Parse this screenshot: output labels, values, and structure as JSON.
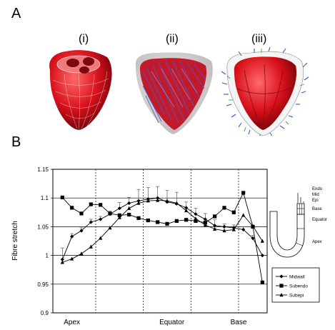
{
  "panel_a": {
    "letter": "A",
    "labels": [
      "(i)",
      "(ii)",
      "(iii)"
    ],
    "model_colors": {
      "myocardium": "#d8111b",
      "fibres": "#3340a8",
      "mesh": "#ffffff",
      "shell": "#c9c9c9",
      "vectors": "#2e5bd0",
      "vectors_alt": "#3aa05a"
    }
  },
  "panel_b": {
    "letter": "B",
    "schematic": {
      "labels": [
        "Endo",
        "Mid",
        "Epi",
        "Base",
        "Equator",
        "Apex"
      ]
    }
  },
  "chart_data": {
    "type": "line",
    "title": "",
    "ylabel": "Fibre stretch",
    "xlabel": "",
    "ylim": [
      0.9,
      1.15
    ],
    "yticks": [
      "1.15",
      "1.1",
      "1.05",
      "1",
      "0.95",
      "0.9"
    ],
    "ytick_values": [
      1.15,
      1.1,
      1.05,
      1.0,
      0.95,
      0.9
    ],
    "region_labels": [
      "Apex",
      "Equator",
      "Base"
    ],
    "region_positions": [
      2,
      12.5,
      19.5
    ],
    "region_dividers": [
      4.5,
      9.5,
      14.5,
      19.5
    ],
    "grid": true,
    "xlim": [
      0,
      22.5
    ],
    "x": [
      1,
      2,
      3,
      4,
      5,
      6,
      7,
      8,
      9,
      10,
      11,
      12,
      13,
      14,
      15,
      16,
      17,
      18,
      19,
      20,
      21,
      22
    ],
    "series": [
      {
        "name": "Midwall",
        "marker": "diamond",
        "values": [
          0.993,
          1.033,
          1.043,
          1.058,
          1.063,
          1.072,
          1.082,
          1.091,
          1.095,
          1.098,
          1.1,
          1.093,
          1.09,
          1.083,
          1.072,
          1.063,
          1.052,
          1.05,
          1.048,
          1.045,
          1.03,
          1.0
        ],
        "errors": [
          0.02,
          0.005,
          0.005,
          0.005,
          0.005,
          0.005,
          0.01,
          0.01,
          0.02,
          0.02,
          0.02,
          0.02,
          0.02,
          0.01,
          0.01,
          0.01,
          0.01,
          0.005,
          0.005,
          0.005,
          0.005,
          0.0
        ]
      },
      {
        "name": "Subendo",
        "marker": "square",
        "values": [
          1.101,
          1.083,
          1.073,
          1.089,
          1.088,
          1.073,
          1.07,
          1.071,
          1.065,
          1.061,
          1.058,
          1.055,
          1.06,
          1.062,
          1.06,
          1.057,
          1.068,
          1.083,
          1.075,
          1.109,
          1.05,
          0.953
        ]
      },
      {
        "name": "Subepi",
        "marker": "triangle",
        "values": [
          0.988,
          0.994,
          1.003,
          1.015,
          1.03,
          1.048,
          1.066,
          1.082,
          1.091,
          1.095,
          1.096,
          1.095,
          1.091,
          1.078,
          1.064,
          1.053,
          1.046,
          1.043,
          1.045,
          1.07,
          1.051,
          1.025
        ]
      }
    ],
    "legend": {
      "placement": "bottom-right",
      "entries": [
        "Midwall",
        "Subendo",
        "Subepi"
      ]
    }
  }
}
